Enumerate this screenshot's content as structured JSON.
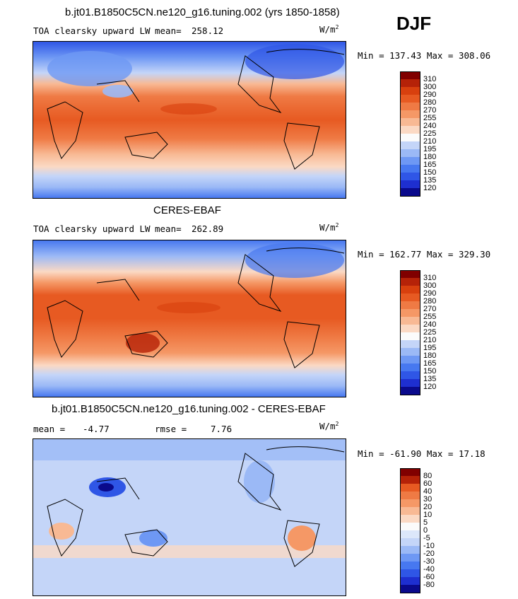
{
  "season": "DJF",
  "units_base": "W/m",
  "units_exp": "2",
  "colors": {
    "abs_palette": [
      "#0a0a8c",
      "#1e2fd0",
      "#2f56e6",
      "#4778f0",
      "#6e98f4",
      "#9bb9f6",
      "#c4d5f8",
      "#fbfbfb",
      "#fbd9c4",
      "#f8b994",
      "#f59866",
      "#ef7a44",
      "#e75a22",
      "#d8400e",
      "#b52208",
      "#800000"
    ],
    "diff_palette": [
      "#0a0a8c",
      "#1e2fd0",
      "#2f56e6",
      "#4778f0",
      "#6e98f4",
      "#9bb9f6",
      "#c4d5f8",
      "#dce7fa",
      "#fbfbfb",
      "#fbd9c4",
      "#f8b994",
      "#f59866",
      "#ef7a44",
      "#e75a22",
      "#b52208",
      "#800000"
    ]
  },
  "panels": [
    {
      "heading": "b.jt01.B1850C5CN.ne120_g16.tuning.002 (yrs 1850-1858)",
      "subtitle": "TOA clearsky upward LW",
      "mean_label": "mean=",
      "mean_value": "258.12",
      "min_max": "Min = 137.43 Max = 308.06",
      "colorbar_ticks": [
        "310",
        "300",
        "290",
        "280",
        "270",
        "255",
        "240",
        "225",
        "210",
        "195",
        "180",
        "165",
        "150",
        "135",
        "120"
      ]
    },
    {
      "heading": "CERES-EBAF",
      "subtitle": "TOA clearsky upward LW",
      "mean_label": "mean=",
      "mean_value": "262.89",
      "min_max": "Min = 162.77 Max = 329.30",
      "colorbar_ticks": [
        "310",
        "300",
        "290",
        "280",
        "270",
        "255",
        "240",
        "225",
        "210",
        "195",
        "180",
        "165",
        "150",
        "135",
        "120"
      ]
    },
    {
      "heading": "b.jt01.B1850C5CN.ne120_g16.tuning.002 - CERES-EBAF",
      "mean_label": "mean =",
      "mean_value": "-4.77",
      "rmse_label": "rmse =",
      "rmse_value": "7.76",
      "min_max": "Min = -61.90 Max =  17.18",
      "colorbar_ticks": [
        "80",
        "60",
        "40",
        "30",
        "20",
        "10",
        "5",
        "0",
        "-5",
        "-10",
        "-20",
        "-30",
        "-40",
        "-60",
        "-80"
      ]
    }
  ],
  "chart_data": [
    {
      "type": "heatmap",
      "title": "b.jt01.B1850C5CN.ne120_g16.tuning.002 (yrs 1850-1858)",
      "variable": "TOA clearsky upward LW",
      "units": "W/m^2",
      "season": "DJF",
      "mean": 258.12,
      "min": 137.43,
      "max": 308.06,
      "contour_levels": [
        120,
        135,
        150,
        165,
        180,
        195,
        210,
        225,
        240,
        255,
        270,
        280,
        290,
        300,
        310
      ],
      "projection": "cylindrical equidistant, centered on 180"
    },
    {
      "type": "heatmap",
      "title": "CERES-EBAF",
      "variable": "TOA clearsky upward LW",
      "units": "W/m^2",
      "season": "DJF",
      "mean": 262.89,
      "min": 162.77,
      "max": 329.3,
      "contour_levels": [
        120,
        135,
        150,
        165,
        180,
        195,
        210,
        225,
        240,
        255,
        270,
        280,
        290,
        300,
        310
      ],
      "projection": "cylindrical equidistant, centered on 180"
    },
    {
      "type": "heatmap",
      "title": "b.jt01.B1850C5CN.ne120_g16.tuning.002 - CERES-EBAF",
      "units": "W/m^2",
      "season": "DJF",
      "mean": -4.77,
      "rmse": 7.76,
      "min": -61.9,
      "max": 17.18,
      "contour_levels": [
        -80,
        -60,
        -40,
        -30,
        -20,
        -10,
        -5,
        0,
        5,
        10,
        20,
        30,
        40,
        60,
        80
      ],
      "projection": "cylindrical equidistant, centered on 180"
    }
  ]
}
